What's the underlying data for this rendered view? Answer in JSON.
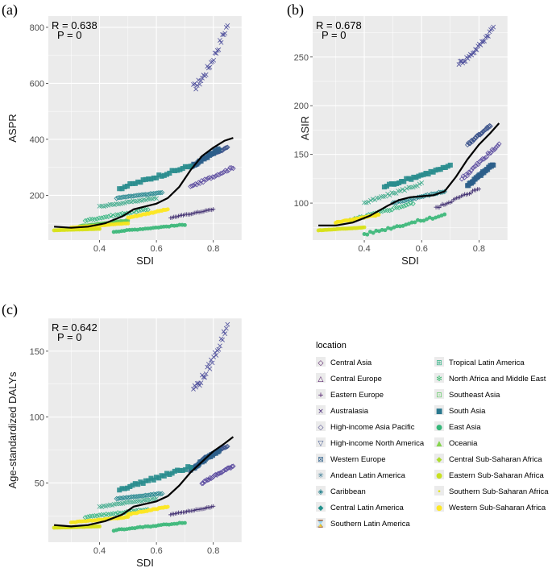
{
  "chart_data": [
    {
      "panel_label": "(a)",
      "type": "scatter",
      "ylabel": "ASPR",
      "xlabel": "SDI",
      "xlim": [
        0.22,
        0.9
      ],
      "ylim": [
        40,
        840
      ],
      "xticks": [
        "0.4",
        "0.6",
        "0.8"
      ],
      "yticks": [
        "200",
        "400",
        "600",
        "800"
      ],
      "stat_r": "R = 0.638",
      "stat_p": "P = 0",
      "series": [
        {
          "name": "Australasia",
          "x0": 0.73,
          "x1": 0.85,
          "y0": 585,
          "y1": 810
        },
        {
          "name": "High-income North America",
          "x0": 0.76,
          "x1": 0.85,
          "y0": 330,
          "y1": 370
        },
        {
          "name": "Western Europe",
          "x0": 0.72,
          "x1": 0.82,
          "y0": 300,
          "y1": 365
        },
        {
          "name": "High-income Asia Pacific",
          "x0": 0.72,
          "x1": 0.87,
          "y0": 230,
          "y1": 300
        },
        {
          "name": "Tropical Latin America",
          "x0": 0.47,
          "x1": 0.72,
          "y0": 225,
          "y1": 305
        },
        {
          "name": "Southern Latin America",
          "x0": 0.46,
          "x1": 0.62,
          "y0": 190,
          "y1": 210
        },
        {
          "name": "North Africa and Middle East",
          "x0": 0.4,
          "x1": 0.6,
          "y0": 160,
          "y1": 190
        },
        {
          "name": "Central Latin America",
          "x0": 0.35,
          "x1": 0.57,
          "y0": 110,
          "y1": 150
        },
        {
          "name": "Eastern Europe",
          "x0": 0.65,
          "x1": 0.8,
          "y0": 120,
          "y1": 150
        },
        {
          "name": "South Asia",
          "x0": 0.33,
          "x1": 0.5,
          "y0": 90,
          "y1": 110
        },
        {
          "name": "East Asia",
          "x0": 0.45,
          "x1": 0.7,
          "y0": 70,
          "y1": 95
        },
        {
          "name": "Western Sub-Saharan Africa",
          "x0": 0.24,
          "x1": 0.4,
          "y0": 75,
          "y1": 80
        },
        {
          "name": "Southern Sub-Saharan Africa",
          "x0": 0.3,
          "x1": 0.5,
          "y0": 85,
          "y1": 100
        },
        {
          "name": "Central Sub-Saharan Africa",
          "x0": 0.5,
          "x1": 0.64,
          "y0": 120,
          "y1": 150
        }
      ],
      "trend": [
        [
          0.24,
          88
        ],
        [
          0.3,
          84
        ],
        [
          0.36,
          88
        ],
        [
          0.42,
          100
        ],
        [
          0.48,
          125
        ],
        [
          0.52,
          150
        ],
        [
          0.56,
          160
        ],
        [
          0.6,
          170
        ],
        [
          0.64,
          190
        ],
        [
          0.68,
          230
        ],
        [
          0.72,
          290
        ],
        [
          0.76,
          340
        ],
        [
          0.8,
          370
        ],
        [
          0.84,
          395
        ],
        [
          0.87,
          405
        ]
      ]
    },
    {
      "panel_label": "(b)",
      "type": "scatter",
      "ylabel": "ASIR",
      "xlabel": "SDI",
      "xlim": [
        0.22,
        0.9
      ],
      "ylim": [
        62,
        292
      ],
      "xticks": [
        "0.4",
        "0.6",
        "0.8"
      ],
      "yticks": [
        "100",
        "150",
        "200",
        "250"
      ],
      "stat_r": "R = 0.678",
      "stat_p": "P = 0",
      "series": [
        {
          "name": "Australasia",
          "x0": 0.73,
          "x1": 0.85,
          "y0": 244,
          "y1": 281
        },
        {
          "name": "High-income North America",
          "x0": 0.76,
          "x1": 0.84,
          "y0": 160,
          "y1": 180
        },
        {
          "name": "Western Europe",
          "x0": 0.76,
          "x1": 0.85,
          "y0": 118,
          "y1": 140
        },
        {
          "name": "High-income Asia Pacific",
          "x0": 0.74,
          "x1": 0.87,
          "y0": 125,
          "y1": 160
        },
        {
          "name": "Tropical Latin America",
          "x0": 0.47,
          "x1": 0.7,
          "y0": 117,
          "y1": 138
        },
        {
          "name": "Southern Latin America",
          "x0": 0.5,
          "x1": 0.68,
          "y0": 100,
          "y1": 112
        },
        {
          "name": "North Africa and Middle East",
          "x0": 0.4,
          "x1": 0.6,
          "y0": 100,
          "y1": 120
        },
        {
          "name": "Central Latin America",
          "x0": 0.35,
          "x1": 0.57,
          "y0": 82,
          "y1": 100
        },
        {
          "name": "Eastern Europe",
          "x0": 0.65,
          "x1": 0.8,
          "y0": 95,
          "y1": 115
        },
        {
          "name": "East Asia",
          "x0": 0.4,
          "x1": 0.68,
          "y0": 68,
          "y1": 88
        },
        {
          "name": "Western Sub-Saharan Africa",
          "x0": 0.24,
          "x1": 0.4,
          "y0": 72,
          "y1": 75
        },
        {
          "name": "Southern Sub-Saharan Africa",
          "x0": 0.3,
          "x1": 0.45,
          "y0": 80,
          "y1": 88
        }
      ],
      "trend": [
        [
          0.24,
          77
        ],
        [
          0.3,
          77
        ],
        [
          0.36,
          80
        ],
        [
          0.42,
          87
        ],
        [
          0.48,
          97
        ],
        [
          0.52,
          103
        ],
        [
          0.56,
          106
        ],
        [
          0.6,
          107
        ],
        [
          0.64,
          108
        ],
        [
          0.68,
          112
        ],
        [
          0.72,
          127
        ],
        [
          0.76,
          145
        ],
        [
          0.8,
          160
        ],
        [
          0.84,
          172
        ],
        [
          0.87,
          182
        ]
      ]
    },
    {
      "panel_label": "(c)",
      "type": "scatter",
      "ylabel": "Age-standardized DALYs",
      "xlabel": "SDI",
      "xlim": [
        0.22,
        0.9
      ],
      "ylim": [
        5,
        175
      ],
      "xticks": [
        "0.4",
        "0.6",
        "0.8"
      ],
      "yticks": [
        "50",
        "100",
        "150"
      ],
      "stat_r": "R = 0.642",
      "stat_p": "P = 0",
      "series": [
        {
          "name": "Australasia",
          "x0": 0.73,
          "x1": 0.85,
          "y0": 122,
          "y1": 170
        },
        {
          "name": "High-income North America",
          "x0": 0.76,
          "x1": 0.85,
          "y0": 68,
          "y1": 78
        },
        {
          "name": "Western Europe",
          "x0": 0.72,
          "x1": 0.82,
          "y0": 60,
          "y1": 75
        },
        {
          "name": "High-income Asia Pacific",
          "x0": 0.76,
          "x1": 0.87,
          "y0": 50,
          "y1": 63
        },
        {
          "name": "Tropical Latin America",
          "x0": 0.47,
          "x1": 0.72,
          "y0": 45,
          "y1": 62
        },
        {
          "name": "Southern Latin America",
          "x0": 0.46,
          "x1": 0.62,
          "y0": 38,
          "y1": 42
        },
        {
          "name": "North Africa and Middle East",
          "x0": 0.4,
          "x1": 0.6,
          "y0": 32,
          "y1": 38
        },
        {
          "name": "Central Latin America",
          "x0": 0.35,
          "x1": 0.57,
          "y0": 24,
          "y1": 30
        },
        {
          "name": "Eastern Europe",
          "x0": 0.65,
          "x1": 0.8,
          "y0": 26,
          "y1": 32
        },
        {
          "name": "East Asia",
          "x0": 0.45,
          "x1": 0.7,
          "y0": 14,
          "y1": 20
        },
        {
          "name": "Western Sub-Saharan Africa",
          "x0": 0.24,
          "x1": 0.4,
          "y0": 16,
          "y1": 17
        },
        {
          "name": "Southern Sub-Saharan Africa",
          "x0": 0.3,
          "x1": 0.5,
          "y0": 20,
          "y1": 24
        },
        {
          "name": "Central Sub-Saharan Africa",
          "x0": 0.5,
          "x1": 0.64,
          "y0": 26,
          "y1": 32
        }
      ],
      "trend": [
        [
          0.24,
          18
        ],
        [
          0.3,
          17
        ],
        [
          0.36,
          18
        ],
        [
          0.42,
          21
        ],
        [
          0.48,
          26
        ],
        [
          0.52,
          32
        ],
        [
          0.56,
          34
        ],
        [
          0.6,
          36
        ],
        [
          0.64,
          40
        ],
        [
          0.68,
          48
        ],
        [
          0.72,
          58
        ],
        [
          0.76,
          66
        ],
        [
          0.8,
          74
        ],
        [
          0.84,
          80
        ],
        [
          0.87,
          85
        ]
      ]
    }
  ],
  "legend": {
    "title": "location",
    "columns": [
      [
        {
          "label": "Central Asia",
          "symbol": "◇",
          "color": "#440154"
        },
        {
          "label": "Central Europe",
          "symbol": "△",
          "color": "#46085c"
        },
        {
          "label": "Eastern Europe",
          "symbol": "+",
          "color": "#471163"
        },
        {
          "label": "Australasia",
          "symbol": "×",
          "color": "#482878"
        },
        {
          "label": "High-income Asia Pacific",
          "symbol": "◇",
          "color": "#433e85"
        },
        {
          "label": "High-income North America",
          "symbol": "▽",
          "color": "#3b528b"
        },
        {
          "label": "Western Europe",
          "symbol": "⊠",
          "color": "#33638d"
        },
        {
          "label": "Andean Latin America",
          "symbol": "✳",
          "color": "#2c728e"
        },
        {
          "label": "Caribbean",
          "symbol": "◈",
          "color": "#26828e"
        },
        {
          "label": "Central Latin America",
          "symbol": "◆",
          "color": "#21918c"
        },
        {
          "label": "Southern Latin America",
          "symbol": "⌛",
          "color": "#1fa088"
        }
      ],
      [
        {
          "label": "Tropical Latin America",
          "symbol": "⊞",
          "color": "#28ae80"
        },
        {
          "label": "North Africa and Middle East",
          "symbol": "✻",
          "color": "#3fbc73"
        },
        {
          "label": "Southeast Asia",
          "symbol": "⊡",
          "color": "#5ec962"
        },
        {
          "label": "South Asia",
          "symbol": "■",
          "color": "#2a788e"
        },
        {
          "label": "East Asia",
          "symbol": "●",
          "color": "#35b779"
        },
        {
          "label": "Oceania",
          "symbol": "▲",
          "color": "#84d44b"
        },
        {
          "label": "Central Sub-Saharan Africa",
          "symbol": "◆",
          "color": "#addc30"
        },
        {
          "label": "Eastern Sub-Saharan Africa",
          "symbol": "●",
          "color": "#c8e020"
        },
        {
          "label": "Southern Sub-Saharan Africa",
          "symbol": "•",
          "color": "#e2e418"
        },
        {
          "label": "Western Sub-Saharan Africa",
          "symbol": "●",
          "color": "#fde725"
        }
      ]
    ]
  },
  "colors": {
    "panel_bg": "#ebebeb",
    "grid": "#ffffff",
    "trend": "#000000",
    "series": {
      "Australasia": "#4b4c9a",
      "High-income North America": "#3b528b",
      "Western Europe": "#2c5f8a",
      "High-income Asia Pacific": "#5a4a9e",
      "Tropical Latin America": "#2a8d8e",
      "Southern Latin America": "#24868e",
      "North Africa and Middle East": "#3aa888",
      "Central Latin America": "#2fb47c",
      "Eastern Europe": "#3d2a6e",
      "South Asia": "#5ec962",
      "East Asia": "#38b777",
      "Western Sub-Saharan Africa": "#d8e219",
      "Southern Sub-Saharan Africa": "#f5e51b",
      "Central Sub-Saharan Africa": "#fde725"
    }
  }
}
